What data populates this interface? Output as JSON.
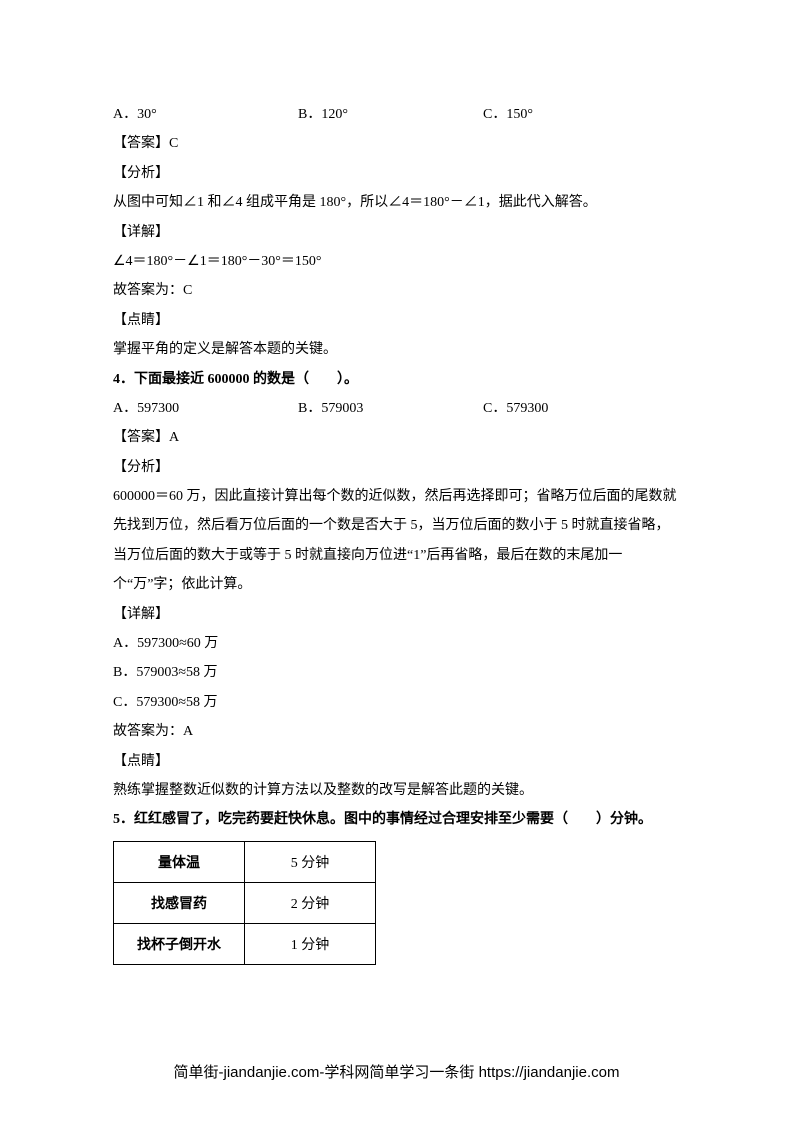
{
  "q3_options": {
    "a": "A．30°",
    "b": "B．120°",
    "c": "C．150°"
  },
  "q3": {
    "answer": "【答案】C",
    "analysis_label": "【分析】",
    "analysis": "从图中可知∠1 和∠4 组成平角是 180°，所以∠4＝180°－∠1，据此代入解答。",
    "detail_label": "【详解】",
    "detail1": "∠4＝180°－∠1＝180°－30°＝150°",
    "detail2": "故答案为：C",
    "tip_label": "【点睛】",
    "tip": "掌握平角的定义是解答本题的关键。"
  },
  "q4": {
    "stem": "4．下面最接近 600000 的数是（　　）。",
    "options": {
      "a": "A．597300",
      "b": "B．579003",
      "c": "C．579300"
    },
    "answer": "【答案】A",
    "analysis_label": "【分析】",
    "analysis": "600000＝60 万，因此直接计算出每个数的近似数，然后再选择即可；省略万位后面的尾数就先找到万位，然后看万位后面的一个数是否大于 5，当万位后面的数小于 5 时就直接省略，当万位后面的数大于或等于 5 时就直接向万位进“1”后再省略，最后在数的末尾加一个“万”字；依此计算。",
    "detail_label": "【详解】",
    "detail_a": "A．597300≈60 万",
    "detail_b": "B．579003≈58 万",
    "detail_c": "C．579300≈58 万",
    "conclusion": "故答案为：A",
    "tip_label": "【点睛】",
    "tip": "熟练掌握整数近似数的计算方法以及整数的改写是解答此题的关键。"
  },
  "q5": {
    "stem": "5．红红感冒了，吃完药要赶快休息。图中的事情经过合理安排至少需要（　　）分钟。",
    "table": {
      "rows": [
        {
          "label": "量体温",
          "value": "5 分钟"
        },
        {
          "label": "找感冒药",
          "value": "2 分钟"
        },
        {
          "label": "找杯子倒开水",
          "value": "1 分钟"
        }
      ]
    }
  },
  "footer": "简单街-jiandanjie.com-学科网简单学习一条街 https://jiandanjie.com"
}
